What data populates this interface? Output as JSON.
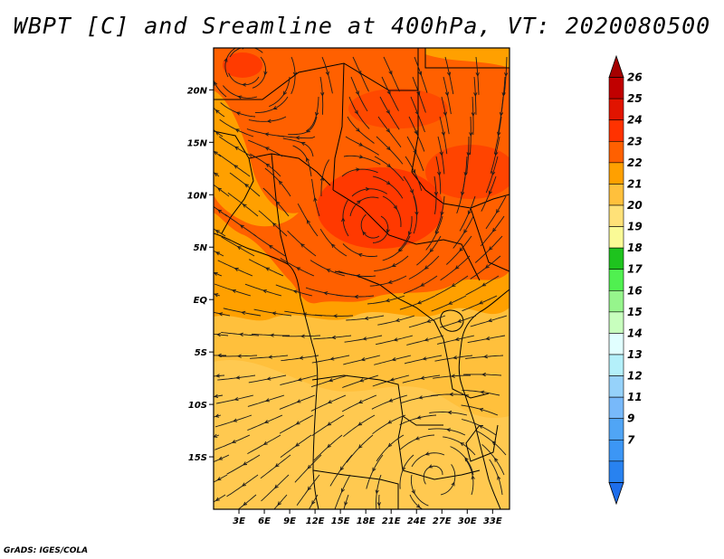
{
  "title": "WBPT [C] and Sreamline at 400hPa, VT: 2020080500",
  "footer": "GrADS: IGES/COLA",
  "map": {
    "lon_range": [
      0,
      35
    ],
    "lat_range": [
      -20,
      24
    ],
    "lat_ticks": [
      {
        "value": 20,
        "label": "20N"
      },
      {
        "value": 15,
        "label": "15N"
      },
      {
        "value": 10,
        "label": "10N"
      },
      {
        "value": 5,
        "label": "5N"
      },
      {
        "value": 0,
        "label": "EQ"
      },
      {
        "value": -5,
        "label": "5S"
      },
      {
        "value": -10,
        "label": "10S"
      },
      {
        "value": -15,
        "label": "15S"
      }
    ],
    "lon_ticks": [
      {
        "value": 3,
        "label": "3E"
      },
      {
        "value": 6,
        "label": "6E"
      },
      {
        "value": 9,
        "label": "9E"
      },
      {
        "value": 12,
        "label": "12E"
      },
      {
        "value": 15,
        "label": "15E"
      },
      {
        "value": 18,
        "label": "18E"
      },
      {
        "value": 21,
        "label": "21E"
      },
      {
        "value": 24,
        "label": "24E"
      },
      {
        "value": 27,
        "label": "27E"
      },
      {
        "value": 30,
        "label": "30E"
      },
      {
        "value": 33,
        "label": "33E"
      }
    ]
  },
  "colorbar": {
    "levels": [
      "7",
      "9",
      "11",
      "12",
      "13",
      "14",
      "15",
      "16",
      "17",
      "18",
      "19",
      "20",
      "21",
      "22",
      "23",
      "24",
      "25",
      "26"
    ],
    "colors": [
      "#1e6eeb",
      "#2882f0",
      "#3c96f5",
      "#50a5f5",
      "#78b9fa",
      "#96d2fa",
      "#b4f0fa",
      "#e1ffff",
      "#c8ffbe",
      "#96f58c",
      "#50f050",
      "#1ec31e",
      "#fafa96",
      "#ffe178",
      "#ffc03c",
      "#ffa000",
      "#ff6000",
      "#ff3200",
      "#e11400",
      "#c00000",
      "#a50000"
    ]
  },
  "colors": {
    "field_low": "#ffc03c",
    "field_mid": "#ffa000",
    "field_high": "#ff6000",
    "field_peak": "#ff3200",
    "streamline": "#1a1a1a",
    "border": "#000000"
  }
}
